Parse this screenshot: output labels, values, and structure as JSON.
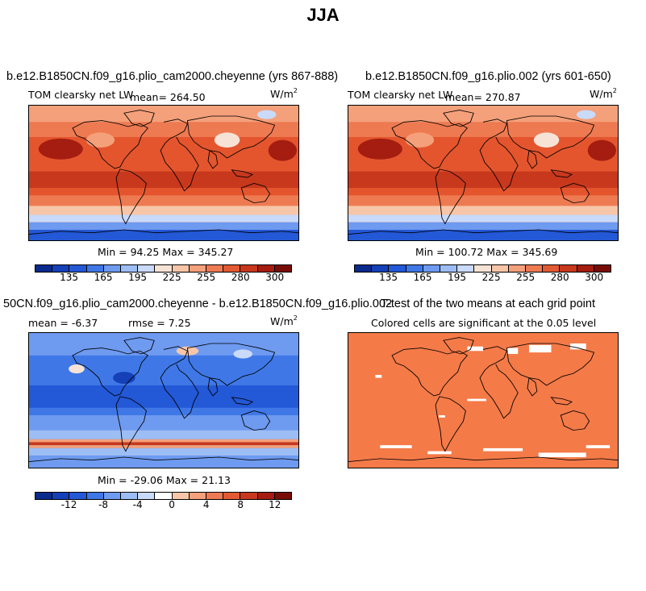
{
  "page": {
    "title": "JJA"
  },
  "panels": {
    "top_left": {
      "title": "b.e12.B1850CN.f09_g16.plio_cam2000.cheyenne (yrs 867-888)",
      "variable": "TOM clearsky net LW",
      "mean": "mean= 264.50",
      "units_base": "W/m",
      "units_exp": "2",
      "minmax": "Min =  94.25 Max = 345.27"
    },
    "top_right": {
      "title": "b.e12.B1850CN.f09_g16.plio.002 (yrs 601-650)",
      "variable": "TOM clearsky net LW",
      "mean": "mean= 270.87",
      "units_base": "W/m",
      "units_exp": "2",
      "minmax": "Min = 100.72 Max = 345.69"
    },
    "bottom_left": {
      "title": "50CN.f09_g16.plio_cam2000.cheyenne - b.e12.B1850CN.f09_g16.plio.002",
      "mean": "mean =   -6.37",
      "rmse": "rmse =    7.25",
      "units_base": "W/m",
      "units_exp": "2",
      "minmax": "Min = -29.06 Max =  21.13"
    },
    "bottom_right": {
      "title": "T-test of the two means at each grid point",
      "subtitle": "Colored cells are significant at the 0.05 level"
    }
  },
  "colorbars": {
    "abs": {
      "ticks": [
        "135",
        "165",
        "195",
        "225",
        "255",
        "280",
        "300"
      ],
      "colors": [
        "#0a2a8c",
        "#1540b8",
        "#2358d6",
        "#3f78e6",
        "#6e9af0",
        "#9dbdf5",
        "#c9dafa",
        "#f6e3d6",
        "#f7c6a8",
        "#f4a07a",
        "#ee7a52",
        "#e25a33",
        "#c8381d",
        "#a41d10",
        "#7a0c08"
      ]
    },
    "diff": {
      "ticks": [
        "-12",
        "-8",
        "-4",
        "0",
        "4",
        "8",
        "12"
      ],
      "colors": [
        "#0a2a8c",
        "#1540b8",
        "#2358d6",
        "#3f78e6",
        "#6e9af0",
        "#9dbdf5",
        "#c9dafa",
        "#ffffff",
        "#f7c6a8",
        "#f4a07a",
        "#ee7a52",
        "#e25a33",
        "#c8381d",
        "#a41d10",
        "#7a0c08"
      ]
    }
  }
}
